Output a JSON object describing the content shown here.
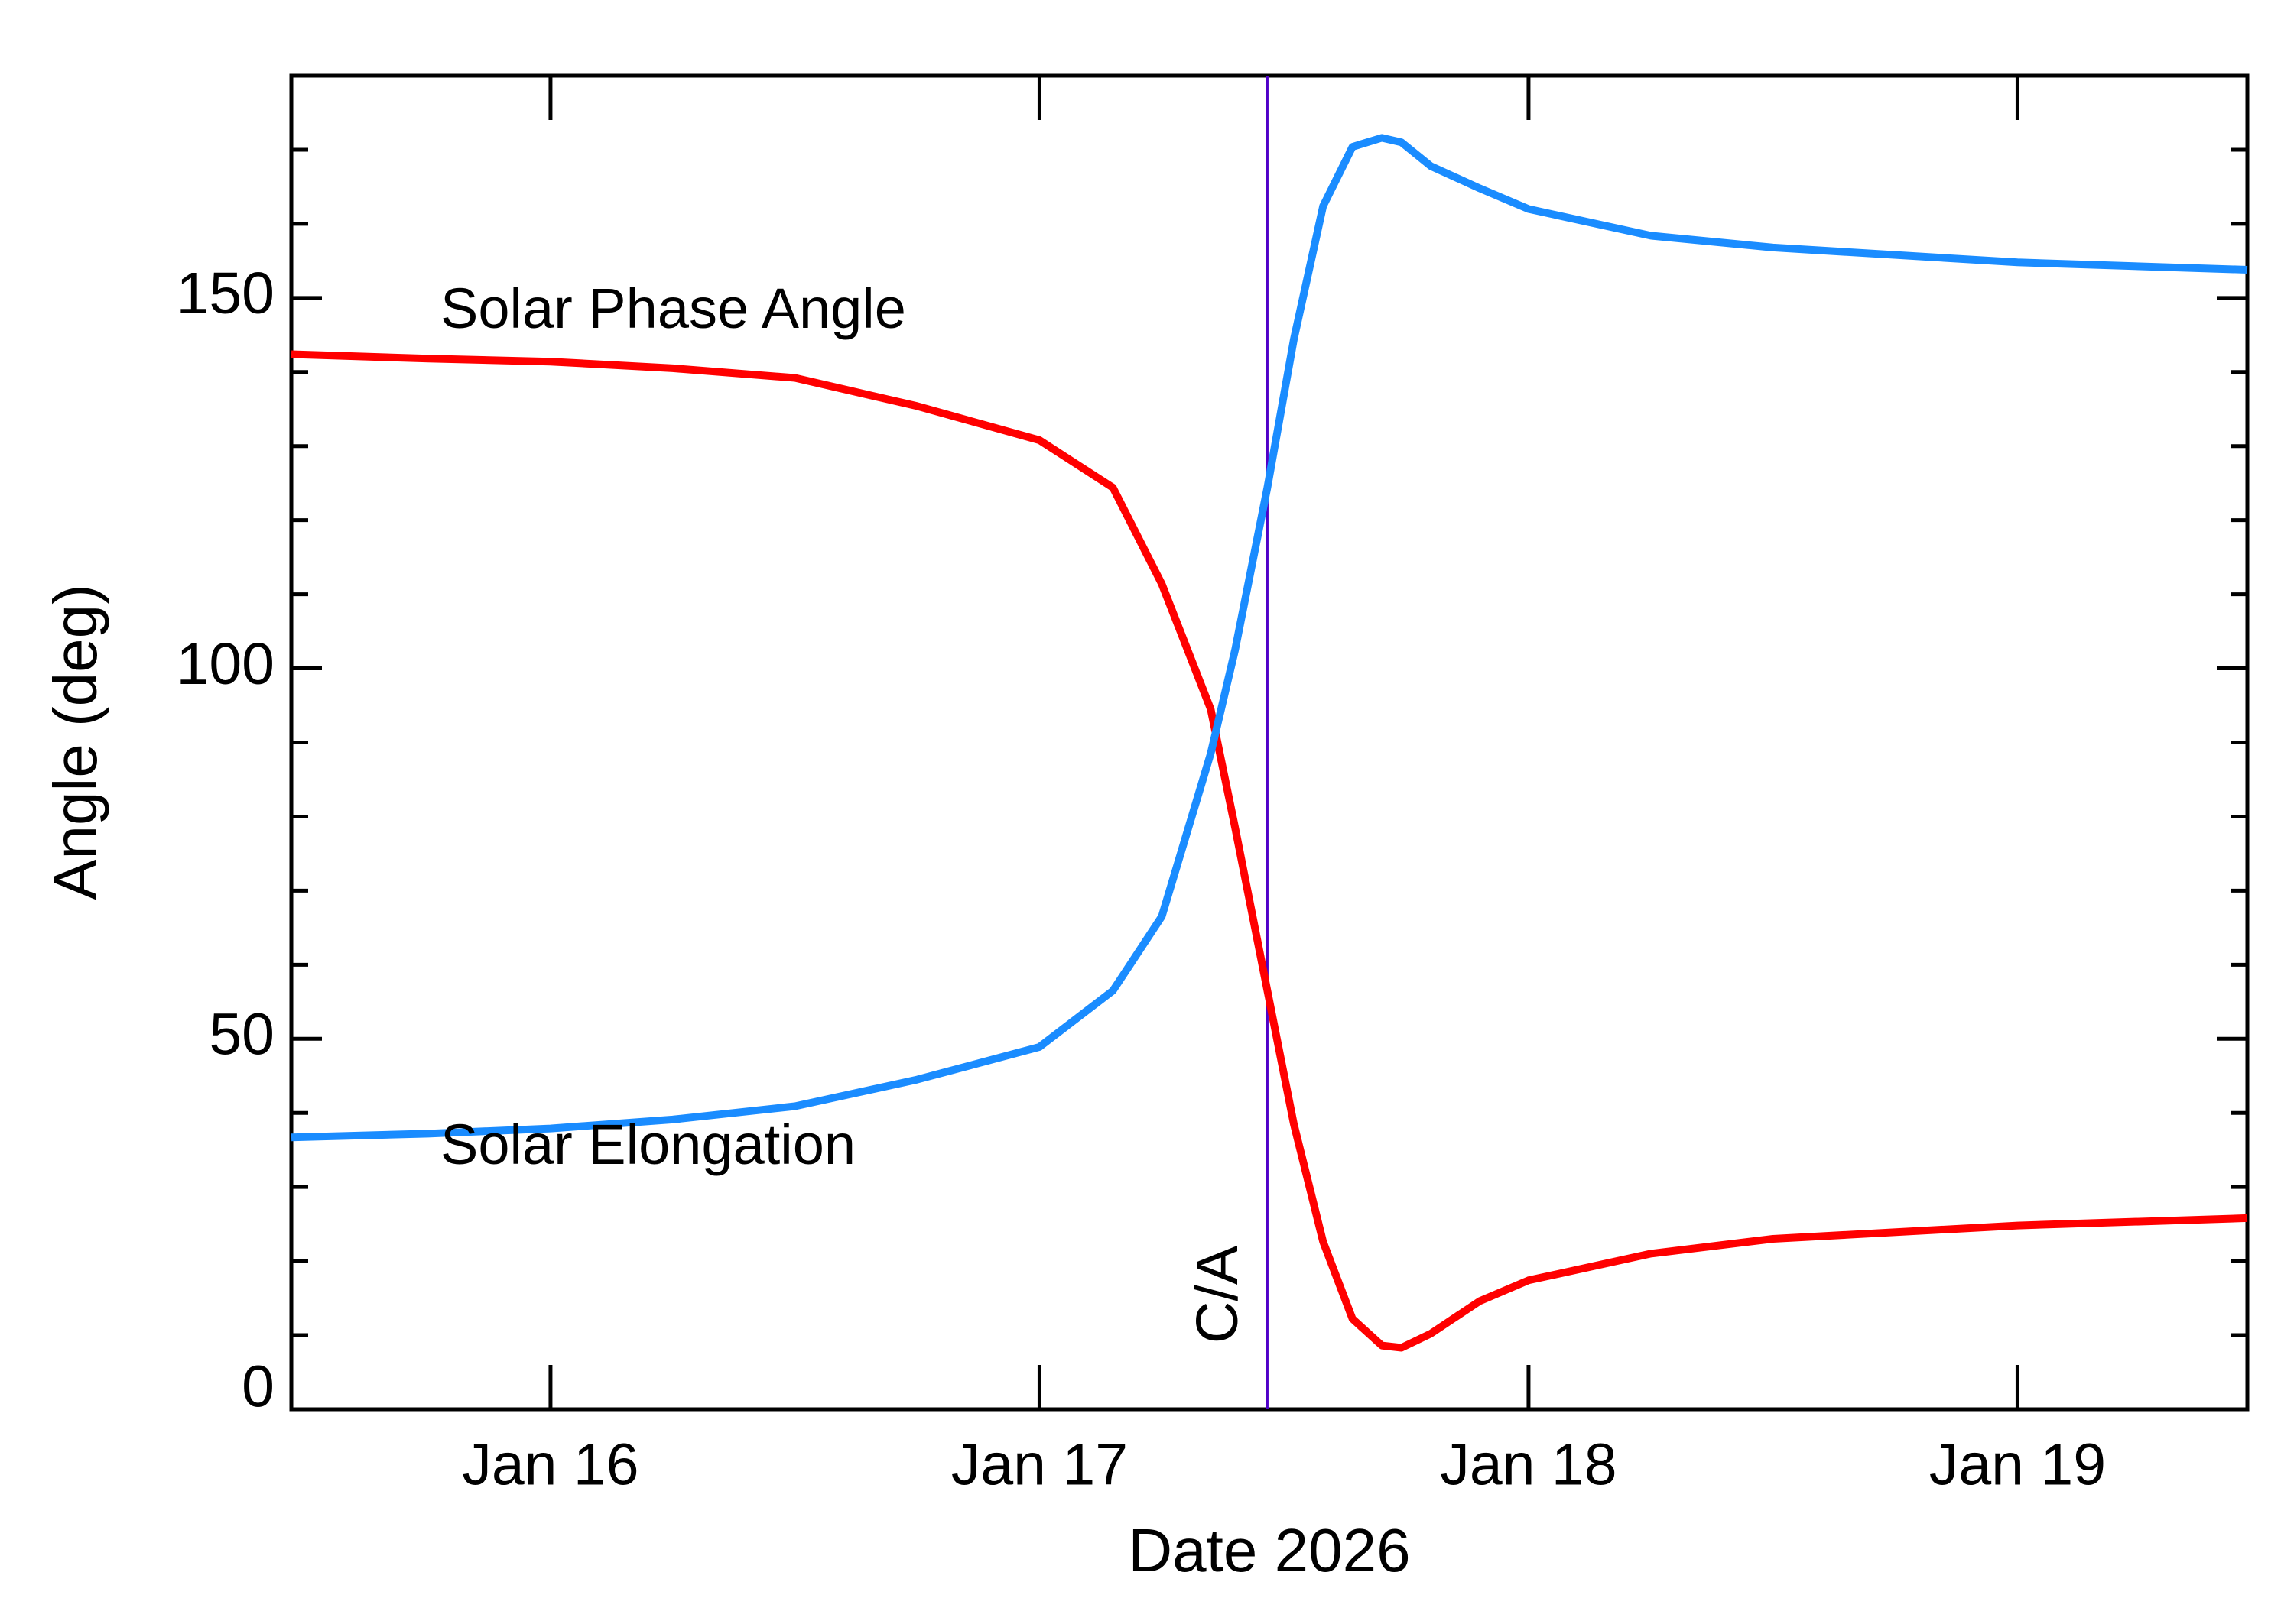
{
  "chart_data": {
    "type": "line",
    "xlabel": "Date 2026",
    "ylabel": "Angle (deg)",
    "x": [
      15.47,
      15.75,
      16.0,
      16.25,
      16.5,
      16.75,
      17.0,
      17.15,
      17.25,
      17.35,
      17.4,
      17.466,
      17.52,
      17.58,
      17.64,
      17.7,
      17.74,
      17.8,
      17.9,
      18.0,
      18.25,
      18.5,
      19.0,
      19.47
    ],
    "series": [
      {
        "name": "Solar Phase Angle",
        "color": "#ff0000",
        "values": [
          142.4,
          141.8,
          141.4,
          140.5,
          139.2,
          135.4,
          130.8,
          124.4,
          111.4,
          94.5,
          78.5,
          56.5,
          38.5,
          22.6,
          12.2,
          8.6,
          8.3,
          10.2,
          14.6,
          17.4,
          21.0,
          23.0,
          24.8,
          25.8
        ]
      },
      {
        "name": "Solar Elongation",
        "color": "#1a8cff",
        "values": [
          36.7,
          37.2,
          37.9,
          39.1,
          40.9,
          44.5,
          48.9,
          56.5,
          66.5,
          88.5,
          102.5,
          124.4,
          144.4,
          162.4,
          170.4,
          171.6,
          171.0,
          167.8,
          164.8,
          162.0,
          158.4,
          156.8,
          154.8,
          153.8
        ]
      }
    ],
    "annotations": [
      {
        "text": "C/A",
        "x": 17.466,
        "color": "#5000c8"
      }
    ],
    "xlim": [
      15.47,
      19.47
    ],
    "xticks": [
      {
        "value": 16,
        "label": "Jan 16"
      },
      {
        "value": 17,
        "label": "Jan 17"
      },
      {
        "value": 18,
        "label": "Jan 18"
      },
      {
        "value": 19,
        "label": "Jan 19"
      }
    ],
    "ylim": [
      0,
      180
    ],
    "yticks": [
      0,
      50,
      100,
      150
    ],
    "yminorticks": [
      10,
      20,
      30,
      40,
      60,
      70,
      80,
      90,
      110,
      120,
      130,
      140,
      160,
      170
    ],
    "grid": false
  }
}
